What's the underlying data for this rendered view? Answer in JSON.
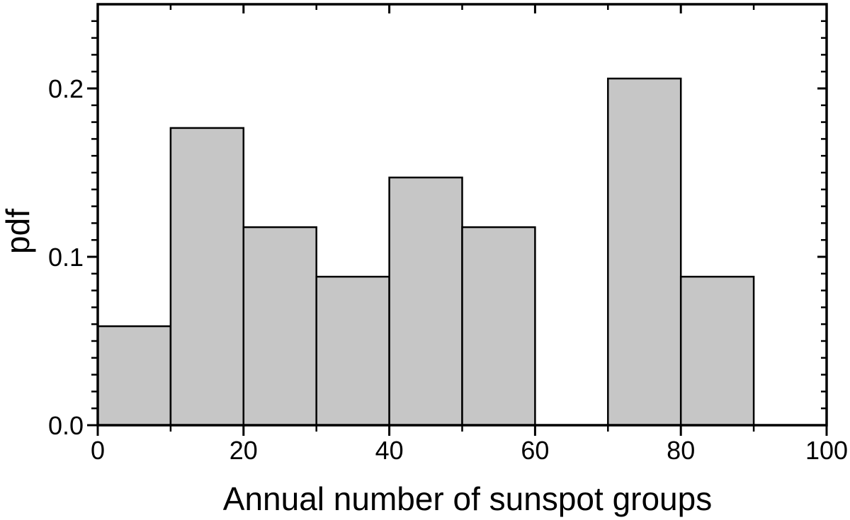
{
  "figure": {
    "background": "#ffffff",
    "bar_fill": "#c6c6c6",
    "bar_edge": "#000000",
    "line_color": "#000000"
  },
  "chart_data": {
    "type": "bar",
    "subtype": "histogram",
    "title": "",
    "xlabel": "Annual number of sunspot groups",
    "ylabel": "pdf",
    "xlim": [
      0,
      100
    ],
    "ylim": [
      0,
      0.25
    ],
    "bin_width": 10,
    "bins": [
      {
        "start": 0,
        "end": 10,
        "value": 0.0588
      },
      {
        "start": 10,
        "end": 20,
        "value": 0.1765
      },
      {
        "start": 20,
        "end": 30,
        "value": 0.1176
      },
      {
        "start": 30,
        "end": 40,
        "value": 0.0882
      },
      {
        "start": 40,
        "end": 50,
        "value": 0.1471
      },
      {
        "start": 50,
        "end": 60,
        "value": 0.1176
      },
      {
        "start": 60,
        "end": 70,
        "value": 0.0
      },
      {
        "start": 70,
        "end": 80,
        "value": 0.2059
      },
      {
        "start": 80,
        "end": 90,
        "value": 0.0882
      },
      {
        "start": 90,
        "end": 100,
        "value": 0.0
      }
    ],
    "x_major_ticks": [
      0,
      20,
      40,
      60,
      80,
      100
    ],
    "x_major_tick_labels": [
      "0",
      "20",
      "40",
      "60",
      "80",
      "100"
    ],
    "x_minor_step": 10,
    "y_major_ticks": [
      0.0,
      0.1,
      0.2
    ],
    "y_major_tick_labels": [
      "0.0",
      "0.1",
      "0.2"
    ],
    "y_minor_step": 0.01,
    "grid": false,
    "legend": null,
    "tick_style": "outward on left and bottom axes, inward on top and right axes"
  }
}
